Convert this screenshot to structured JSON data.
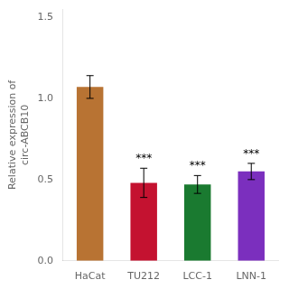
{
  "chart_data": {
    "type": "bar",
    "categories": [
      "HaCat",
      "TU212",
      "LCC-1",
      "LNN-1"
    ],
    "values": [
      1.07,
      0.48,
      0.47,
      0.55
    ],
    "errors": [
      0.07,
      0.09,
      0.055,
      0.05
    ],
    "colors": [
      "#B87333",
      "#C41230",
      "#1A7A30",
      "#7B2FBE"
    ],
    "annotations": [
      {
        "category": "TU212",
        "text": "***"
      },
      {
        "category": "LCC-1",
        "text": "***"
      },
      {
        "category": "LNN-1",
        "text": "***"
      }
    ],
    "ylabel": "Relative expression of\ncirc-ABCB10",
    "ylim": [
      0,
      1.55
    ],
    "yticks": [
      {
        "value": 0,
        "label": "0.0"
      },
      0.5,
      {
        "value": 1,
        "label": "1.0"
      },
      1.5
    ],
    "grid": false
  }
}
